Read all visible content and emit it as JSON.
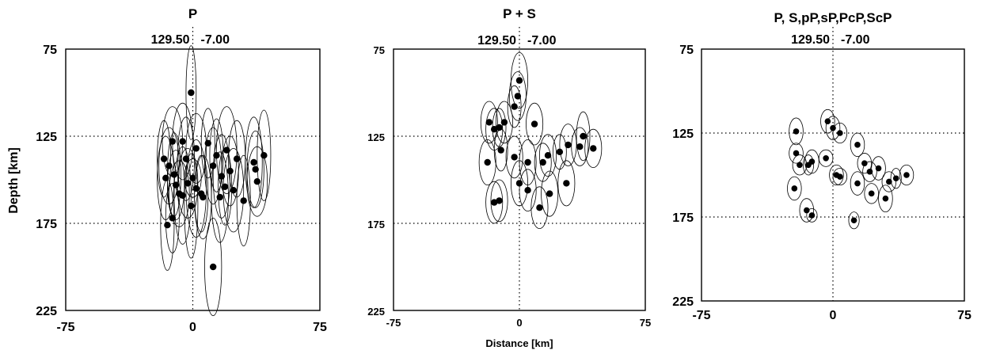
{
  "y_axis_label": "Depth [km]",
  "x_axis_label": "Distance [km]",
  "chart_data": [
    {
      "type": "scatter",
      "title": "P",
      "coords": {
        "lon": "129.50",
        "lat": "-7.00"
      },
      "ylabel": "Depth [km]",
      "xlabel": "",
      "xlim": [
        -75,
        75
      ],
      "ylim": [
        225,
        75
      ],
      "x_ticks": [
        "-75",
        "0",
        "75"
      ],
      "y_ticks": [
        "75",
        "125",
        "175",
        "225"
      ],
      "grid": {
        "x": [
          0
        ],
        "y": [
          125,
          175
        ]
      },
      "points": [
        {
          "x": -1,
          "y": 100,
          "sx": 3,
          "sy": 27
        },
        {
          "x": 0,
          "y": 149,
          "sx": 5,
          "sy": 11
        },
        {
          "x": -17,
          "y": 138,
          "sx": 4,
          "sy": 22
        },
        {
          "x": -16,
          "y": 149,
          "sx": 5,
          "sy": 24
        },
        {
          "x": -12,
          "y": 128,
          "sx": 6,
          "sy": 20
        },
        {
          "x": -14,
          "y": 142,
          "sx": 6,
          "sy": 22
        },
        {
          "x": -11,
          "y": 147,
          "sx": 4,
          "sy": 24
        },
        {
          "x": -10,
          "y": 153,
          "sx": 5,
          "sy": 20
        },
        {
          "x": -8,
          "y": 158,
          "sx": 6,
          "sy": 19
        },
        {
          "x": -12,
          "y": 172,
          "sx": 4,
          "sy": 20
        },
        {
          "x": -15,
          "y": 176,
          "sx": 4,
          "sy": 26
        },
        {
          "x": -6,
          "y": 128,
          "sx": 6,
          "sy": 22
        },
        {
          "x": -4,
          "y": 138,
          "sx": 5,
          "sy": 24
        },
        {
          "x": -3,
          "y": 152,
          "sx": 6,
          "sy": 20
        },
        {
          "x": 2,
          "y": 132,
          "sx": 6,
          "sy": 20
        },
        {
          "x": 5,
          "y": 158,
          "sx": 4,
          "sy": 22
        },
        {
          "x": 9,
          "y": 129,
          "sx": 4,
          "sy": 20
        },
        {
          "x": 12,
          "y": 142,
          "sx": 5,
          "sy": 22
        },
        {
          "x": 14,
          "y": 136,
          "sx": 4,
          "sy": 21
        },
        {
          "x": 17,
          "y": 148,
          "sx": 5,
          "sy": 24
        },
        {
          "x": 19,
          "y": 154,
          "sx": 4,
          "sy": 22
        },
        {
          "x": 20,
          "y": 133,
          "sx": 6,
          "sy": 25
        },
        {
          "x": 22,
          "y": 145,
          "sx": 5,
          "sy": 20
        },
        {
          "x": 24,
          "y": 156,
          "sx": 6,
          "sy": 24
        },
        {
          "x": 26,
          "y": 138,
          "sx": 5,
          "sy": 22
        },
        {
          "x": 30,
          "y": 162,
          "sx": 4,
          "sy": 26
        },
        {
          "x": 36,
          "y": 140,
          "sx": 5,
          "sy": 26
        },
        {
          "x": 37,
          "y": 144,
          "sx": 5,
          "sy": 22
        },
        {
          "x": 38,
          "y": 151,
          "sx": 6,
          "sy": 20
        },
        {
          "x": 42,
          "y": 136,
          "sx": 4,
          "sy": 26
        },
        {
          "x": 2,
          "y": 155,
          "sx": 6,
          "sy": 28
        },
        {
          "x": 12,
          "y": 200,
          "sx": 5,
          "sy": 28
        },
        {
          "x": -1,
          "y": 165,
          "sx": 4,
          "sy": 30
        },
        {
          "x": -6,
          "y": 159,
          "sx": 5,
          "sy": 28
        },
        {
          "x": 6,
          "y": 160,
          "sx": 5,
          "sy": 24
        },
        {
          "x": 16,
          "y": 160,
          "sx": 5,
          "sy": 26
        }
      ]
    },
    {
      "type": "scatter",
      "title": "P + S",
      "coords": {
        "lon": "129.50",
        "lat": "-7.00"
      },
      "ylabel": "",
      "xlabel": "Distance [km]",
      "xlim": [
        -75,
        75
      ],
      "ylim": [
        225,
        75
      ],
      "x_ticks": [
        "-75",
        "0",
        "75"
      ],
      "y_ticks": [
        "75",
        "125",
        "175",
        "225"
      ],
      "grid": {
        "x": [
          0
        ],
        "y": [
          125,
          175
        ]
      },
      "points": [
        {
          "x": 0,
          "y": 93,
          "sx": 5,
          "sy": 16
        },
        {
          "x": -1,
          "y": 102,
          "sx": 5,
          "sy": 14
        },
        {
          "x": -3,
          "y": 108,
          "sx": 4,
          "sy": 12
        },
        {
          "x": -18,
          "y": 117,
          "sx": 5,
          "sy": 12
        },
        {
          "x": -15,
          "y": 121,
          "sx": 5,
          "sy": 12
        },
        {
          "x": -12,
          "y": 120,
          "sx": 4,
          "sy": 11
        },
        {
          "x": -9,
          "y": 117,
          "sx": 5,
          "sy": 12
        },
        {
          "x": 9,
          "y": 118,
          "sx": 5,
          "sy": 12
        },
        {
          "x": -19,
          "y": 140,
          "sx": 5,
          "sy": 13
        },
        {
          "x": -11,
          "y": 133,
          "sx": 4,
          "sy": 12
        },
        {
          "x": -3,
          "y": 137,
          "sx": 5,
          "sy": 12
        },
        {
          "x": 5,
          "y": 140,
          "sx": 5,
          "sy": 13
        },
        {
          "x": 14,
          "y": 140,
          "sx": 5,
          "sy": 11
        },
        {
          "x": 17,
          "y": 136,
          "sx": 5,
          "sy": 12
        },
        {
          "x": 24,
          "y": 134,
          "sx": 4,
          "sy": 10
        },
        {
          "x": 29,
          "y": 130,
          "sx": 5,
          "sy": 12
        },
        {
          "x": 36,
          "y": 131,
          "sx": 5,
          "sy": 11
        },
        {
          "x": 38,
          "y": 125,
          "sx": 4,
          "sy": 14
        },
        {
          "x": 44,
          "y": 132,
          "sx": 5,
          "sy": 11
        },
        {
          "x": 0,
          "y": 152,
          "sx": 5,
          "sy": 13
        },
        {
          "x": 5,
          "y": 156,
          "sx": 5,
          "sy": 12
        },
        {
          "x": 18,
          "y": 158,
          "sx": 5,
          "sy": 13
        },
        {
          "x": 28,
          "y": 152,
          "sx": 5,
          "sy": 13
        },
        {
          "x": -15,
          "y": 163,
          "sx": 5,
          "sy": 12
        },
        {
          "x": -12,
          "y": 162,
          "sx": 5,
          "sy": 12
        },
        {
          "x": 12,
          "y": 166,
          "sx": 5,
          "sy": 12
        }
      ]
    },
    {
      "type": "scatter",
      "title": "P, S,pP,sP,PcP,ScP",
      "coords": {
        "lon": "129.50",
        "lat": "-7.00"
      },
      "ylabel": "",
      "xlabel": "",
      "xlim": [
        -75,
        75
      ],
      "ylim": [
        225,
        75
      ],
      "x_ticks": [
        "-75",
        "0",
        "75"
      ],
      "y_ticks": [
        "75",
        "125",
        "175",
        "225"
      ],
      "grid": {
        "x": [
          0
        ],
        "y": [
          125,
          175
        ]
      },
      "points": [
        {
          "x": -21,
          "y": 124,
          "sx": 4,
          "sy": 8
        },
        {
          "x": -3,
          "y": 118,
          "sx": 4,
          "sy": 7
        },
        {
          "x": 0,
          "y": 122,
          "sx": 4,
          "sy": 7
        },
        {
          "x": 4,
          "y": 125,
          "sx": 4,
          "sy": 6
        },
        {
          "x": -21,
          "y": 137,
          "sx": 4,
          "sy": 6
        },
        {
          "x": -19,
          "y": 144,
          "sx": 4,
          "sy": 6
        },
        {
          "x": -14,
          "y": 144,
          "sx": 3,
          "sy": 6
        },
        {
          "x": -12,
          "y": 142,
          "sx": 4,
          "sy": 7
        },
        {
          "x": -4,
          "y": 140,
          "sx": 4,
          "sy": 5
        },
        {
          "x": 14,
          "y": 132,
          "sx": 4,
          "sy": 7
        },
        {
          "x": 2,
          "y": 150,
          "sx": 4,
          "sy": 6
        },
        {
          "x": 4,
          "y": 151,
          "sx": 4,
          "sy": 5
        },
        {
          "x": 18,
          "y": 143,
          "sx": 4,
          "sy": 6
        },
        {
          "x": 21,
          "y": 148,
          "sx": 4,
          "sy": 6
        },
        {
          "x": 26,
          "y": 146,
          "sx": 4,
          "sy": 7
        },
        {
          "x": 14,
          "y": 155,
          "sx": 4,
          "sy": 7
        },
        {
          "x": 22,
          "y": 161,
          "sx": 4,
          "sy": 6
        },
        {
          "x": 32,
          "y": 154,
          "sx": 4,
          "sy": 6
        },
        {
          "x": 36,
          "y": 152,
          "sx": 3,
          "sy": 6
        },
        {
          "x": 42,
          "y": 150,
          "sx": 4,
          "sy": 6
        },
        {
          "x": 30,
          "y": 164,
          "sx": 4,
          "sy": 8
        },
        {
          "x": -22,
          "y": 158,
          "sx": 4,
          "sy": 7
        },
        {
          "x": -15,
          "y": 171,
          "sx": 4,
          "sy": 7
        },
        {
          "x": -12,
          "y": 174,
          "sx": 3,
          "sy": 4
        },
        {
          "x": 12,
          "y": 177,
          "sx": 3,
          "sy": 5
        }
      ]
    }
  ]
}
